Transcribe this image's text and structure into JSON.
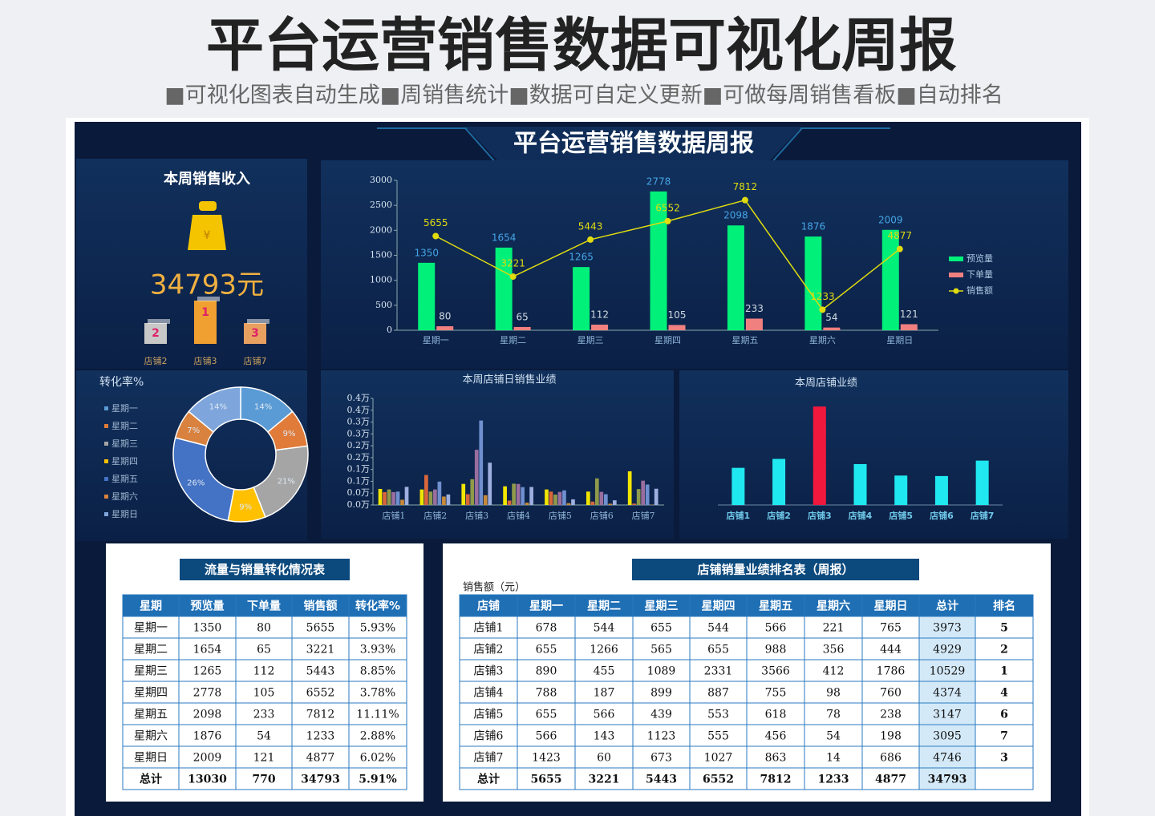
{
  "header": {
    "title": "平台运营销售数据可视化周报",
    "subtitle": "■可视化图表自动生成■周销售统计■数据可自定义更新■可做每周销售看板■自动排名"
  },
  "dashboard": {
    "title": "平台运营销售数据周报"
  },
  "revenue": {
    "title": "本周销售收入",
    "amount": "34793元",
    "podium": [
      {
        "rank": 2,
        "store": "店铺2"
      },
      {
        "rank": 1,
        "store": "店铺3"
      },
      {
        "rank": 3,
        "store": "店铺7"
      }
    ]
  },
  "chart_data": [
    {
      "type": "combo",
      "categories": [
        "星期一",
        "星期二",
        "星期三",
        "星期四",
        "星期五",
        "星期六",
        "星期日"
      ],
      "series": [
        {
          "name": "预览量",
          "type": "bar",
          "color": "#00f07a",
          "values": [
            1350,
            1654,
            1265,
            2778,
            2098,
            1876,
            2009
          ]
        },
        {
          "name": "下单量",
          "type": "bar",
          "color": "#f08080",
          "values": [
            80,
            65,
            112,
            105,
            233,
            54,
            121
          ]
        },
        {
          "name": "销售额",
          "type": "line",
          "axis": "y2",
          "color": "#e0dc10",
          "values": [
            5655,
            3221,
            5443,
            6552,
            7812,
            1233,
            4877
          ]
        }
      ],
      "ylim": [
        0,
        3000
      ],
      "yticks": [
        0,
        500,
        1000,
        1500,
        2000,
        2500,
        3000
      ],
      "y2lim": [
        0,
        9000
      ],
      "legend": "right"
    },
    {
      "type": "donut",
      "title": "转化率%",
      "categories": [
        "星期一",
        "星期二",
        "星期三",
        "星期四",
        "星期五",
        "星期六",
        "星期日"
      ],
      "values": [
        14,
        9,
        21,
        9,
        26,
        7,
        14
      ],
      "value_labels": [
        "14%",
        "9%",
        "21%",
        "9%",
        "26%",
        "7%",
        "14%"
      ],
      "colors": [
        "#5b9bd5",
        "#e07b39",
        "#a5a5a5",
        "#ffc000",
        "#4472c4",
        "#d9823f",
        "#7ea6dc"
      ],
      "legend": "left"
    },
    {
      "type": "grouped_bar",
      "title": "本周店铺日销售业绩",
      "categories": [
        "店铺1",
        "店铺2",
        "店铺3",
        "店铺4",
        "店铺5",
        "店铺6",
        "店铺7"
      ],
      "series": [
        {
          "color": "#f2e600",
          "values": [
            678,
            655,
            890,
            788,
            655,
            566,
            1423
          ]
        },
        {
          "color": "#d9663a",
          "values": [
            544,
            1266,
            455,
            187,
            566,
            143,
            60
          ]
        },
        {
          "color": "#8f9a4a",
          "values": [
            655,
            565,
            1089,
            899,
            439,
            1123,
            673
          ]
        },
        {
          "color": "#9a6e9e",
          "values": [
            544,
            655,
            2331,
            887,
            553,
            555,
            1027
          ]
        },
        {
          "color": "#6f8fcf",
          "values": [
            566,
            988,
            3566,
            755,
            618,
            456,
            863
          ]
        },
        {
          "color": "#c88a3a",
          "values": [
            221,
            356,
            412,
            98,
            78,
            54,
            14
          ]
        },
        {
          "color": "#9fb0e0",
          "values": [
            765,
            444,
            1786,
            760,
            238,
            198,
            686
          ]
        }
      ],
      "ylim": [
        0,
        4500
      ],
      "yticks": [
        {
          "value": 0,
          "label": "0.0万"
        },
        {
          "value": 500,
          "label": "0.0万"
        },
        {
          "value": 1000,
          "label": "0.1万"
        },
        {
          "value": 1500,
          "label": "0.1万"
        },
        {
          "value": 2000,
          "label": "0.2万"
        },
        {
          "value": 2500,
          "label": "0.2万"
        },
        {
          "value": 3000,
          "label": "0.3万"
        },
        {
          "value": 3500,
          "label": "0.3万"
        },
        {
          "value": 4000,
          "label": "0.4万"
        },
        {
          "value": 4500,
          "label": "0.4万"
        }
      ]
    },
    {
      "type": "bar",
      "title": "本周店铺业绩",
      "categories": [
        "店铺1",
        "店铺2",
        "店铺3",
        "店铺4",
        "店铺5",
        "店铺6",
        "店铺7"
      ],
      "values": [
        3973,
        4929,
        10529,
        4374,
        3147,
        3095,
        4746
      ],
      "colors": [
        "#20e8f0",
        "#20e8f0",
        "#f0183c",
        "#20e8f0",
        "#20e8f0",
        "#20e8f0",
        "#20e8f0"
      ],
      "ylim": [
        0,
        12000
      ]
    }
  ],
  "tables": [
    {
      "title": "流量与销量转化情况表",
      "columns": [
        "星期",
        "预览量",
        "下单量",
        "销售额",
        "转化率%"
      ],
      "rows": [
        [
          "星期一",
          1350,
          80,
          5655,
          "5.93%"
        ],
        [
          "星期二",
          1654,
          65,
          3221,
          "3.93%"
        ],
        [
          "星期三",
          1265,
          112,
          5443,
          "8.85%"
        ],
        [
          "星期四",
          2778,
          105,
          6552,
          "3.78%"
        ],
        [
          "星期五",
          2098,
          233,
          7812,
          "11.11%"
        ],
        [
          "星期六",
          1876,
          54,
          1233,
          "2.88%"
        ],
        [
          "星期日",
          2009,
          121,
          4877,
          "6.02%"
        ]
      ],
      "total": [
        "总计",
        13030,
        770,
        34793,
        "5.91%"
      ]
    },
    {
      "title": "店铺销量业绩排名表（周报）",
      "unit": "销售额（元）",
      "columns": [
        "店铺",
        "星期一",
        "星期二",
        "星期三",
        "星期四",
        "星期五",
        "星期六",
        "星期日",
        "总计",
        "排名"
      ],
      "rows": [
        [
          "店铺1",
          678,
          544,
          655,
          544,
          566,
          221,
          765,
          3973,
          5
        ],
        [
          "店铺2",
          655,
          1266,
          565,
          655,
          988,
          356,
          444,
          4929,
          2
        ],
        [
          "店铺3",
          890,
          455,
          1089,
          2331,
          3566,
          412,
          1786,
          10529,
          1
        ],
        [
          "店铺4",
          788,
          187,
          899,
          887,
          755,
          98,
          760,
          4374,
          4
        ],
        [
          "店铺5",
          655,
          566,
          439,
          553,
          618,
          78,
          238,
          3147,
          6
        ],
        [
          "店铺6",
          566,
          143,
          1123,
          555,
          456,
          54,
          198,
          3095,
          7
        ],
        [
          "店铺7",
          1423,
          60,
          673,
          1027,
          863,
          14,
          686,
          4746,
          3
        ]
      ],
      "total": [
        "总计",
        5655,
        3221,
        5443,
        6552,
        7812,
        1233,
        4877,
        34793
      ]
    }
  ]
}
